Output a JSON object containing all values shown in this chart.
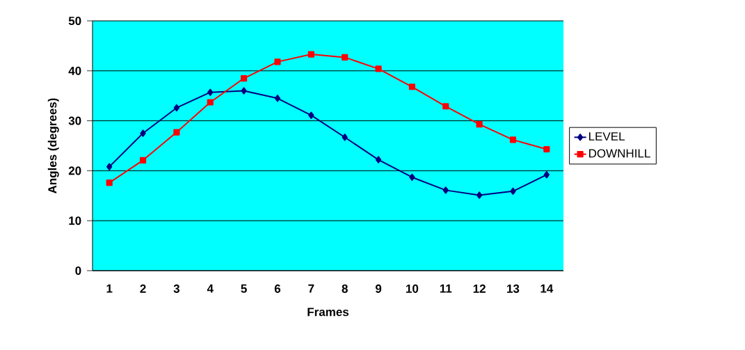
{
  "chart_data": {
    "type": "line",
    "xlabel": "Frames",
    "ylabel": "Angles (degrees)",
    "categories": [
      "1",
      "2",
      "3",
      "4",
      "5",
      "6",
      "7",
      "8",
      "9",
      "10",
      "11",
      "12",
      "13",
      "14"
    ],
    "series": [
      {
        "name": "LEVEL",
        "color": "#000080",
        "marker": "diamond",
        "values": [
          20.8,
          27.5,
          32.6,
          35.7,
          36.0,
          34.5,
          31.1,
          26.7,
          22.2,
          18.7,
          16.1,
          15.1,
          15.9,
          19.2
        ]
      },
      {
        "name": "DOWNHILL",
        "color": "#ff0000",
        "marker": "square",
        "values": [
          17.6,
          22.1,
          27.7,
          33.7,
          38.5,
          41.8,
          43.3,
          42.7,
          40.4,
          36.8,
          32.9,
          29.3,
          26.2,
          24.3
        ]
      }
    ],
    "ylim": [
      0,
      50
    ],
    "yticks": [
      0,
      10,
      20,
      30,
      40,
      50
    ],
    "grid": "y",
    "legend": "right",
    "line_style": "solid"
  }
}
